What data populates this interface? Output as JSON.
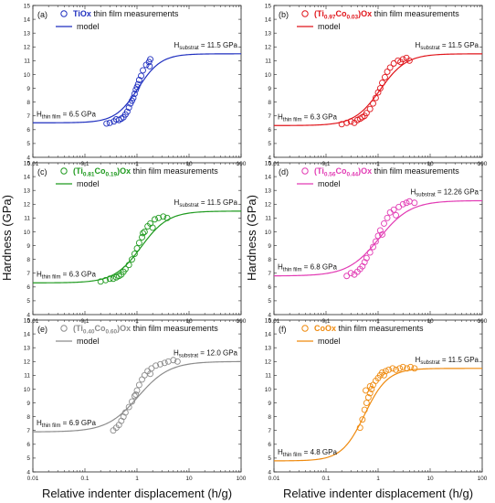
{
  "figure": {
    "xlabel": "Relative indenter displacement (h/g)",
    "ylabel": "Hardness (GPa)"
  },
  "chart_data": [
    {
      "type": "scatter",
      "panel": "(a)",
      "legend_sample": {
        "pre": "",
        "main": "TiOx",
        "post": "",
        "plain": " thin film measurements",
        "sub1": "",
        "mid": "",
        "sub2": ""
      },
      "legend_model": "model",
      "color": "#1f2fbf",
      "x_scale": "log",
      "xlim": [
        0.01,
        100
      ],
      "ylim": [
        4,
        15
      ],
      "x_ticks": [
        "0.01",
        "0.1",
        "1",
        "10",
        "100"
      ],
      "y_ticks": [
        "4",
        "5",
        "6",
        "7",
        "8",
        "9",
        "10",
        "11",
        "12",
        "13",
        "14",
        "15"
      ],
      "film": {
        "text": "H",
        "sub": "thin film",
        "value": " = 6.5 GPa",
        "hardness": 6.5
      },
      "substrate": {
        "text": "H",
        "sub": "substrat",
        "value": " = 11.5 GPa",
        "hardness": 11.5
      },
      "model": {
        "x0": 1.05,
        "width": 0.22
      },
      "points": [
        [
          0.26,
          6.45
        ],
        [
          0.3,
          6.5
        ],
        [
          0.36,
          6.6
        ],
        [
          0.4,
          6.75
        ],
        [
          0.45,
          6.7
        ],
        [
          0.5,
          6.8
        ],
        [
          0.55,
          6.9
        ],
        [
          0.6,
          7.1
        ],
        [
          0.65,
          7.3
        ],
        [
          0.7,
          7.6
        ],
        [
          0.75,
          7.9
        ],
        [
          0.8,
          8.1
        ],
        [
          0.85,
          8.3
        ],
        [
          0.9,
          8.6
        ],
        [
          0.95,
          8.9
        ],
        [
          1.0,
          9.1
        ],
        [
          1.05,
          9.3
        ],
        [
          1.1,
          9.6
        ],
        [
          1.2,
          9.9
        ],
        [
          1.3,
          10.3
        ],
        [
          1.5,
          10.7
        ],
        [
          1.7,
          10.9
        ],
        [
          1.8,
          11.1
        ],
        [
          1.75,
          10.6
        ]
      ]
    },
    {
      "type": "scatter",
      "panel": "(b)",
      "legend_sample": {
        "pre": "(Ti",
        "main": "",
        "post": ")Ox",
        "plain": " thin film measurements",
        "sub1": "0.97",
        "mid": "Co",
        "sub2": "0.03"
      },
      "legend_model": "model",
      "color": "#e0151b",
      "x_scale": "log",
      "xlim": [
        0.01,
        100
      ],
      "ylim": [
        4,
        15
      ],
      "x_ticks": [
        "0.01",
        "0.1",
        "1",
        "10",
        "100"
      ],
      "y_ticks": [
        "4",
        "5",
        "6",
        "7",
        "8",
        "9",
        "10",
        "11",
        "12",
        "13",
        "14",
        "15"
      ],
      "film": {
        "text": "H",
        "sub": "thin film",
        "value": " = 6.3 GPa",
        "hardness": 6.3
      },
      "substrate": {
        "text": "H",
        "sub": "substrat",
        "value": " = 11.5 GPa",
        "hardness": 11.5
      },
      "model": {
        "x0": 1.1,
        "width": 0.25
      },
      "points": [
        [
          0.2,
          6.4
        ],
        [
          0.25,
          6.5
        ],
        [
          0.3,
          6.6
        ],
        [
          0.35,
          6.5
        ],
        [
          0.4,
          6.7
        ],
        [
          0.45,
          6.8
        ],
        [
          0.5,
          6.9
        ],
        [
          0.55,
          7.0
        ],
        [
          0.6,
          7.2
        ],
        [
          0.7,
          7.5
        ],
        [
          0.8,
          7.9
        ],
        [
          0.9,
          8.3
        ],
        [
          1.0,
          8.7
        ],
        [
          1.1,
          9.0
        ],
        [
          1.2,
          9.4
        ],
        [
          1.35,
          9.8
        ],
        [
          1.5,
          10.2
        ],
        [
          1.7,
          10.5
        ],
        [
          2.0,
          10.8
        ],
        [
          2.4,
          11.0
        ],
        [
          3.0,
          11.1
        ],
        [
          3.5,
          11.2
        ],
        [
          4.0,
          11.0
        ],
        [
          2.7,
          10.9
        ]
      ]
    },
    {
      "type": "scatter",
      "panel": "(c)",
      "legend_sample": {
        "pre": "(Ti",
        "main": "",
        "post": ")Ox",
        "plain": " thin film measurements",
        "sub1": "0.81",
        "mid": "Co",
        "sub2": "0.19"
      },
      "legend_model": "model",
      "color": "#1f9a1f",
      "x_scale": "log",
      "xlim": [
        0.01,
        100
      ],
      "ylim": [
        4,
        15
      ],
      "x_ticks": [
        "0.01",
        "0.1",
        "1",
        "10",
        "100"
      ],
      "y_ticks": [
        "4",
        "5",
        "6",
        "7",
        "8",
        "9",
        "10",
        "11",
        "12",
        "13",
        "14",
        "15"
      ],
      "film": {
        "text": "H",
        "sub": "thin film",
        "value": " = 6.3 GPa",
        "hardness": 6.3
      },
      "substrate": {
        "text": "H",
        "sub": "substrat",
        "value": " = 11.5 GPa",
        "hardness": 11.5
      },
      "model": {
        "x0": 1.2,
        "width": 0.26
      },
      "points": [
        [
          0.2,
          6.4
        ],
        [
          0.25,
          6.5
        ],
        [
          0.3,
          6.6
        ],
        [
          0.35,
          6.6
        ],
        [
          0.4,
          6.7
        ],
        [
          0.45,
          6.8
        ],
        [
          0.5,
          6.9
        ],
        [
          0.55,
          7.1
        ],
        [
          0.6,
          7.3
        ],
        [
          0.7,
          7.6
        ],
        [
          0.8,
          8.0
        ],
        [
          0.9,
          8.4
        ],
        [
          1.0,
          8.8
        ],
        [
          1.1,
          9.2
        ],
        [
          1.25,
          9.6
        ],
        [
          1.4,
          10.0
        ],
        [
          1.6,
          10.4
        ],
        [
          1.8,
          10.6
        ],
        [
          2.2,
          10.9
        ],
        [
          2.6,
          11.0
        ],
        [
          3.2,
          11.1
        ],
        [
          3.8,
          11.0
        ],
        [
          2.0,
          10.3
        ],
        [
          1.3,
          9.9
        ]
      ]
    },
    {
      "type": "scatter",
      "panel": "(d)",
      "legend_sample": {
        "pre": "(Ti",
        "main": "",
        "post": ")Ox",
        "plain": " thin film measurements",
        "sub1": "0.56",
        "mid": "Co",
        "sub2": "0.44"
      },
      "legend_model": "model",
      "color": "#e23bb4",
      "x_scale": "log",
      "xlim": [
        0.01,
        100
      ],
      "ylim": [
        4,
        15
      ],
      "x_ticks": [
        "0.01",
        "0.1",
        "1",
        "10",
        "100"
      ],
      "y_ticks": [
        "4",
        "5",
        "6",
        "7",
        "8",
        "9",
        "10",
        "11",
        "12",
        "13",
        "14",
        "15"
      ],
      "film": {
        "text": "H",
        "sub": "thin film",
        "value": " = 6.8 GPa",
        "hardness": 6.8
      },
      "substrate": {
        "text": "H",
        "sub": "substrat",
        "value": " = 12.26 GPa",
        "hardness": 12.26
      },
      "model": {
        "x0": 1.05,
        "width": 0.3
      },
      "points": [
        [
          0.25,
          6.8
        ],
        [
          0.3,
          7.0
        ],
        [
          0.35,
          6.9
        ],
        [
          0.4,
          7.1
        ],
        [
          0.45,
          7.3
        ],
        [
          0.5,
          7.5
        ],
        [
          0.55,
          7.8
        ],
        [
          0.6,
          8.1
        ],
        [
          0.7,
          8.5
        ],
        [
          0.8,
          8.9
        ],
        [
          0.9,
          9.3
        ],
        [
          1.0,
          9.7
        ],
        [
          1.1,
          10.1
        ],
        [
          1.3,
          10.6
        ],
        [
          1.5,
          11.0
        ],
        [
          1.7,
          11.4
        ],
        [
          2.0,
          11.6
        ],
        [
          2.5,
          11.8
        ],
        [
          3.0,
          12.0
        ],
        [
          3.5,
          12.1
        ],
        [
          4.0,
          12.2
        ],
        [
          5.0,
          12.1
        ],
        [
          2.2,
          11.2
        ],
        [
          1.2,
          9.8
        ]
      ]
    },
    {
      "type": "scatter",
      "panel": "(e)",
      "legend_sample": {
        "pre": "(Ti",
        "main": "",
        "post": ")Ox",
        "plain": " thin film measurements",
        "sub1": "0.40",
        "mid": "Co",
        "sub2": "0.60"
      },
      "legend_model": "model",
      "color": "#8c8c8c",
      "x_scale": "log",
      "xlim": [
        0.01,
        100
      ],
      "ylim": [
        4,
        15
      ],
      "x_ticks": [
        "0.01",
        "0.1",
        "1",
        "10",
        "100"
      ],
      "y_ticks": [
        "4",
        "5",
        "6",
        "7",
        "8",
        "9",
        "10",
        "11",
        "12",
        "13",
        "14",
        "15"
      ],
      "film": {
        "text": "H",
        "sub": "thin film",
        "value": " = 6.9 GPa",
        "hardness": 6.9
      },
      "substrate": {
        "text": "H",
        "sub": "substrat",
        "value": " = 12.0 GPa",
        "hardness": 12.0
      },
      "model": {
        "x0": 1.05,
        "width": 0.3
      },
      "points": [
        [
          0.35,
          7.0
        ],
        [
          0.4,
          7.2
        ],
        [
          0.45,
          7.4
        ],
        [
          0.5,
          7.7
        ],
        [
          0.55,
          8.0
        ],
        [
          0.6,
          8.3
        ],
        [
          0.7,
          8.7
        ],
        [
          0.8,
          9.1
        ],
        [
          0.9,
          9.5
        ],
        [
          1.0,
          9.9
        ],
        [
          1.1,
          10.3
        ],
        [
          1.25,
          10.7
        ],
        [
          1.4,
          11.0
        ],
        [
          1.6,
          11.3
        ],
        [
          1.9,
          11.5
        ],
        [
          2.3,
          11.7
        ],
        [
          2.8,
          11.8
        ],
        [
          3.4,
          11.9
        ],
        [
          4.0,
          12.0
        ],
        [
          5.0,
          12.1
        ],
        [
          6.0,
          12.0
        ],
        [
          1.8,
          11.1
        ],
        [
          0.95,
          9.6
        ]
      ]
    },
    {
      "type": "scatter",
      "panel": "(f)",
      "legend_sample": {
        "pre": "",
        "main": "CoOx",
        "post": "",
        "plain": " thin film measurements",
        "sub1": "",
        "mid": "",
        "sub2": ""
      },
      "legend_model": "model",
      "color": "#ef8a0e",
      "x_scale": "log",
      "xlim": [
        0.01,
        100
      ],
      "ylim": [
        4,
        15
      ],
      "x_ticks": [
        "0.01",
        "0.1",
        "1",
        "10",
        "100"
      ],
      "y_ticks": [
        "4",
        "5",
        "6",
        "7",
        "8",
        "9",
        "10",
        "11",
        "12",
        "13",
        "14",
        "15"
      ],
      "film": {
        "text": "H",
        "sub": "thin film",
        "value": " = 4.8 GPa",
        "hardness": 4.8
      },
      "substrate": {
        "text": "H",
        "sub": "substrat",
        "value": " = 11.5 GPa",
        "hardness": 11.5
      },
      "model": {
        "x0": 0.55,
        "width": 0.22
      },
      "points": [
        [
          0.45,
          7.2
        ],
        [
          0.5,
          7.8
        ],
        [
          0.55,
          8.5
        ],
        [
          0.6,
          9.0
        ],
        [
          0.65,
          9.4
        ],
        [
          0.7,
          9.7
        ],
        [
          0.75,
          10.0
        ],
        [
          0.8,
          10.3
        ],
        [
          0.9,
          10.6
        ],
        [
          1.0,
          10.8
        ],
        [
          1.1,
          11.0
        ],
        [
          1.2,
          11.2
        ],
        [
          1.4,
          11.3
        ],
        [
          1.6,
          11.4
        ],
        [
          1.9,
          11.5
        ],
        [
          2.2,
          11.4
        ],
        [
          2.6,
          11.5
        ],
        [
          3.0,
          11.6
        ],
        [
          3.6,
          11.5
        ],
        [
          4.2,
          11.6
        ],
        [
          5.0,
          11.5
        ],
        [
          0.7,
          10.2
        ],
        [
          1.3,
          11.0
        ],
        [
          0.58,
          9.9
        ]
      ]
    }
  ]
}
